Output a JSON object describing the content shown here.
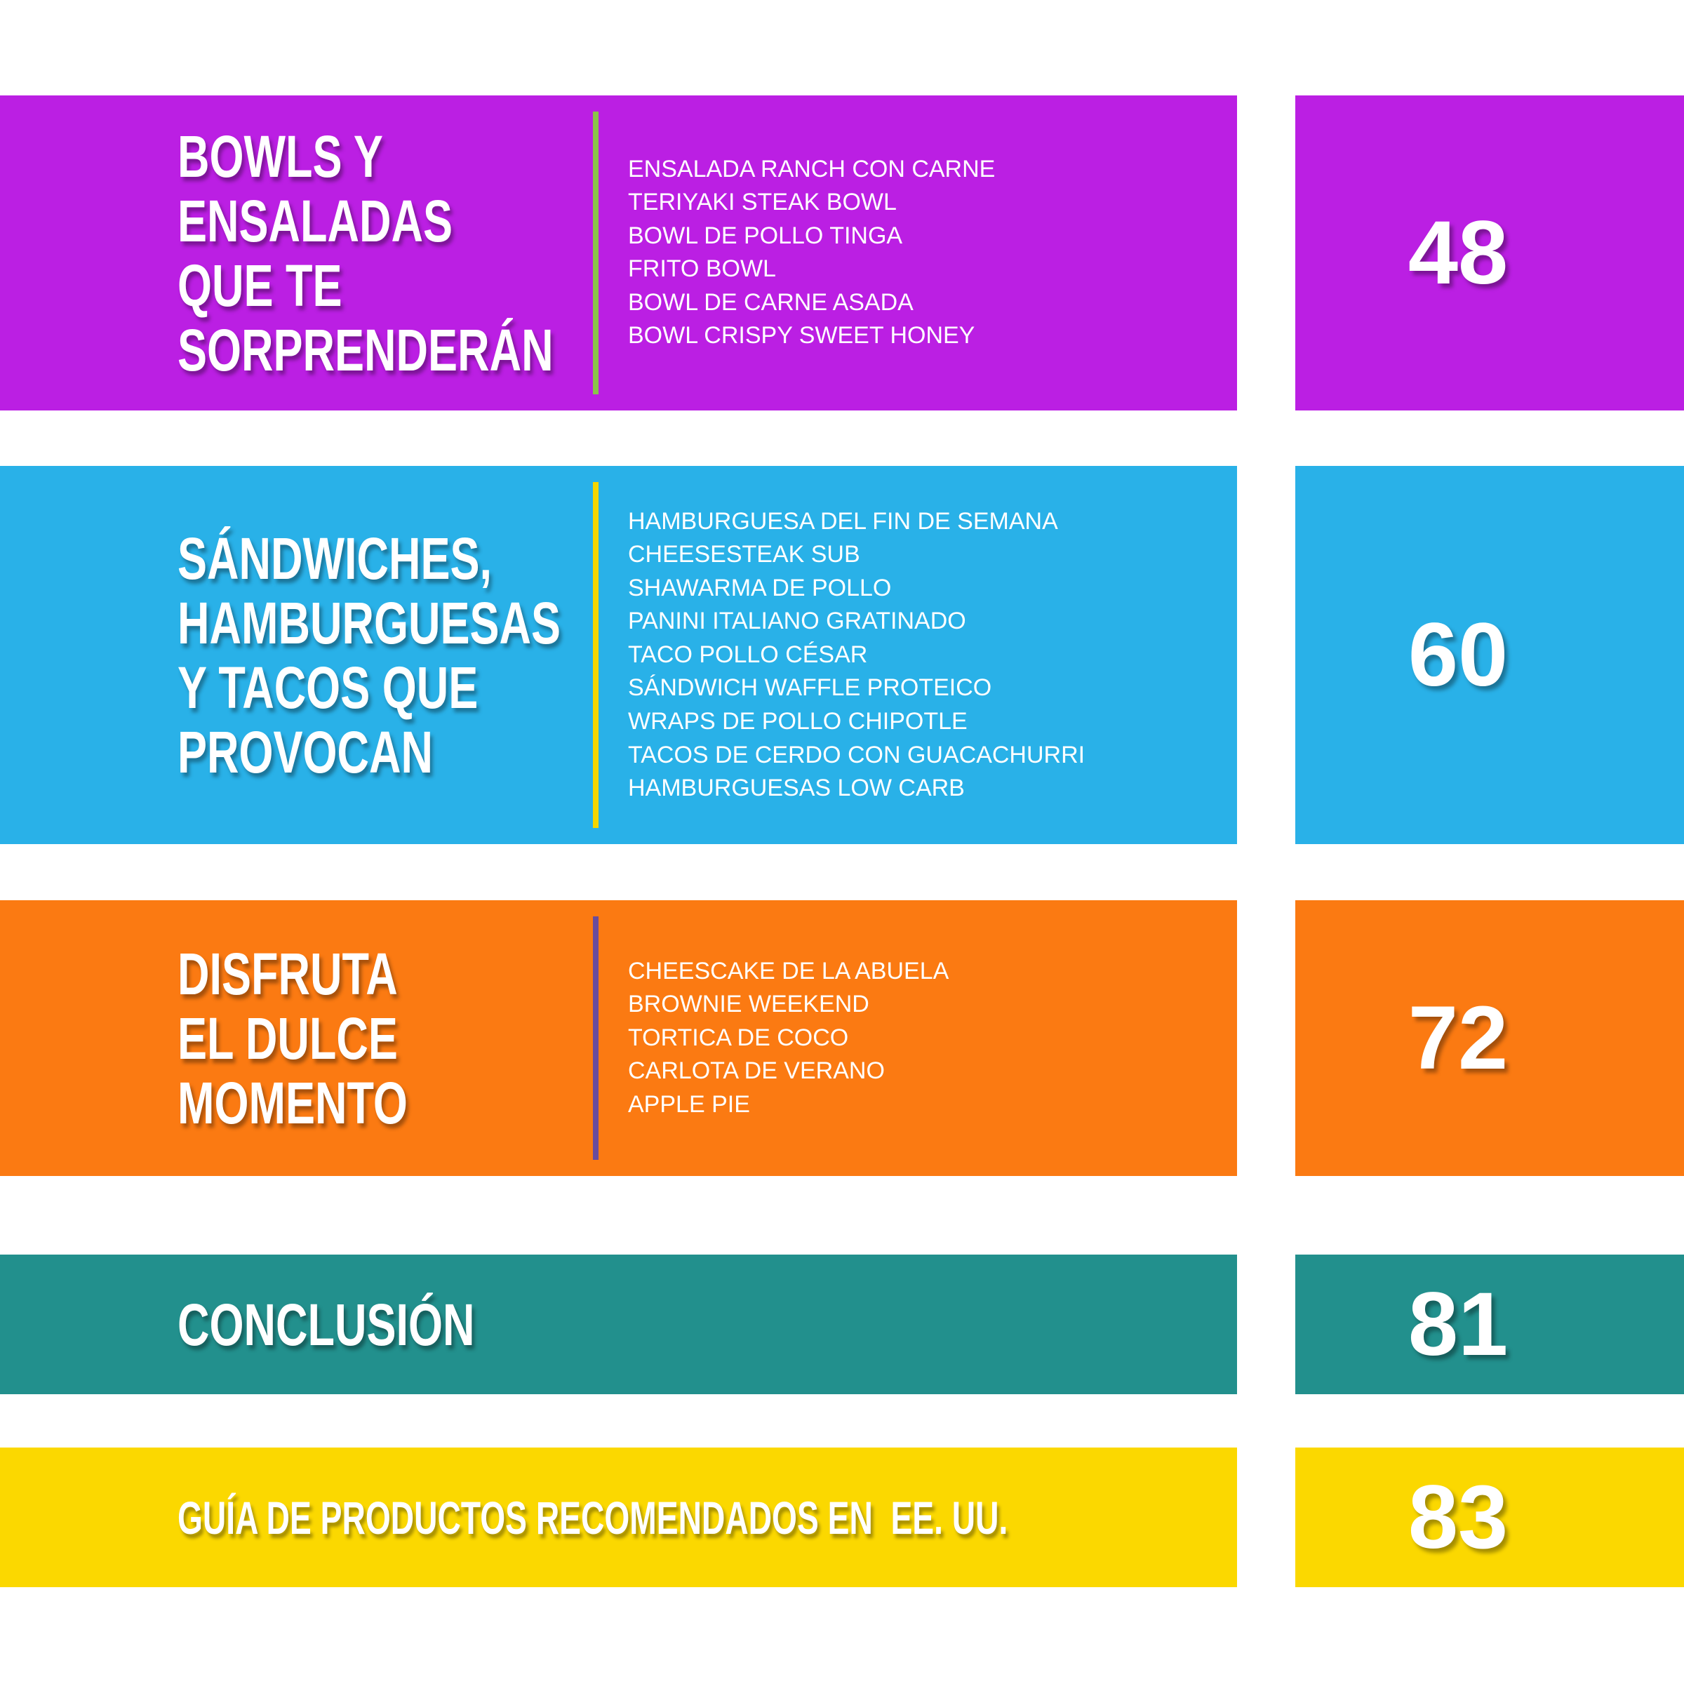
{
  "sections": [
    {
      "title_lines": [
        "BOWLS Y",
        "ENSALADAS",
        "QUE TE",
        "SORPRENDERÁN"
      ],
      "items": [
        "ENSALADA RANCH CON CARNE",
        "TERIYAKI STEAK BOWL",
        "BOWL DE POLLO TINGA",
        "FRITO BOWL",
        "BOWL DE CARNE ASADA",
        "BOWL CRISPY SWEET HONEY"
      ],
      "page": "48",
      "color": "#bb1fe3",
      "accent": "#8bc34a"
    },
    {
      "title_lines": [
        "SÁNDWICHES,",
        "HAMBURGUESAS",
        "Y TACOS QUE",
        "PROVOCAN"
      ],
      "items": [
        "HAMBURGUESA DEL FIN DE SEMANA",
        "CHEESESTEAK SUB",
        "SHAWARMA DE POLLO",
        "PANINI ITALIANO GRATINADO",
        "TACO POLLO CÉSAR",
        "SÁNDWICH WAFFLE PROTEICO",
        "WRAPS DE POLLO CHIPOTLE",
        "TACOS DE CERDO CON GUACACHURRI",
        "HAMBURGUESAS LOW CARB"
      ],
      "page": "60",
      "color": "#29b1e8",
      "accent": "#f5d600"
    },
    {
      "title_lines": [
        "DISFRUTA",
        "EL DULCE",
        "MOMENTO"
      ],
      "items": [
        "CHEESCAKE DE LA ABUELA",
        "BROWNIE WEEKEND",
        "TORTICA DE COCO",
        "CARLOTA DE VERANO",
        "APPLE PIE"
      ],
      "page": "72",
      "color": "#fb7a12",
      "accent": "#6a4c9c"
    },
    {
      "title_lines": [
        "CONCLUSIÓN"
      ],
      "items": [],
      "page": "81",
      "color": "#22908d"
    },
    {
      "title_lines": [
        "GUÍA DE PRODUCTOS RECOMENDADOS EN  EE. UU."
      ],
      "items": [],
      "page": "83",
      "color": "#fbd800"
    }
  ]
}
